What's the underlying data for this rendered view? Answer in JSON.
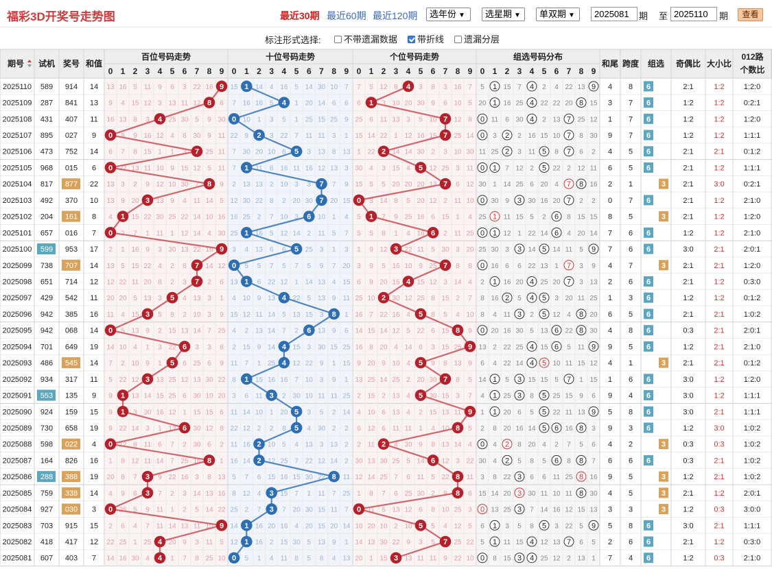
{
  "header": {
    "title": "福彩3D开奖号走势图",
    "period_links": [
      "最近30期",
      "最近60期",
      "最近120期"
    ],
    "selects": [
      "选年份",
      "选星期",
      "单双期"
    ],
    "start_period": "2025081",
    "end_period": "2025110",
    "period_label": "期",
    "to_label": "至",
    "view_button": "查看"
  },
  "options": {
    "label": "标注形式选择:",
    "items": [
      "不带遗漏数据",
      "带折线",
      "遗漏分层"
    ]
  },
  "table": {
    "columns": [
      "期号",
      "试机",
      "奖号",
      "和值",
      "和尾",
      "跨度",
      "组选",
      "奇偶比",
      "大小比",
      "012路个数比"
    ],
    "col_012_lines": [
      "012路",
      "个数比"
    ],
    "sort_icon": "sort-arrows-icon",
    "groups": [
      "百位号码走势",
      "十位号码走势",
      "个位号码走势",
      "组选号码分布"
    ],
    "digits": [
      "0",
      "1",
      "2",
      "3",
      "4",
      "5",
      "6",
      "7",
      "8",
      "9"
    ],
    "group6_label": "6",
    "group3_label": "3",
    "colors": {
      "hundreds_ball": "#b5202a",
      "hundreds_line": "#d4646b",
      "tens_ball": "#2d6fb2",
      "tens_line": "#4f87c3",
      "ones_ball": "#b5202a",
      "group6_badge": "#5ca7bd",
      "group3_badge": "#d9a25a",
      "header_bg": "#eeeeee",
      "zone_a_bg": "#fbf2f2",
      "zone_b_bg": "#f1f4fa"
    },
    "rows": [
      {
        "period": "2025110",
        "test": "589",
        "num": "914",
        "sum": "14",
        "tail": "4",
        "span": "8",
        "group": 6,
        "test_group": null,
        "num_hl": false,
        "oe": "2:1",
        "bs": "1:2",
        "r012": "1:2:0"
      },
      {
        "period": "2025109",
        "test": "287",
        "num": "841",
        "sum": "13",
        "tail": "3",
        "span": "7",
        "group": 6,
        "test_group": null,
        "num_hl": false,
        "oe": "1:2",
        "bs": "1:2",
        "r012": "0:2:1"
      },
      {
        "period": "2025108",
        "test": "431",
        "num": "407",
        "sum": "11",
        "tail": "1",
        "span": "7",
        "group": 6,
        "test_group": null,
        "num_hl": false,
        "oe": "1:2",
        "bs": "1:2",
        "r012": "1:2:0"
      },
      {
        "period": "2025107",
        "test": "895",
        "num": "027",
        "sum": "9",
        "tail": "9",
        "span": "7",
        "group": 6,
        "test_group": null,
        "num_hl": false,
        "oe": "1:2",
        "bs": "1:2",
        "r012": "1:1:1"
      },
      {
        "period": "2025106",
        "test": "473",
        "num": "752",
        "sum": "14",
        "tail": "4",
        "span": "5",
        "group": 6,
        "test_group": null,
        "num_hl": false,
        "oe": "2:1",
        "bs": "2:1",
        "r012": "0:1:2"
      },
      {
        "period": "2025105",
        "test": "968",
        "num": "015",
        "sum": "6",
        "tail": "6",
        "span": "5",
        "group": 6,
        "test_group": null,
        "num_hl": false,
        "oe": "2:1",
        "bs": "1:2",
        "r012": "1:1:1"
      },
      {
        "period": "2025104",
        "test": "817",
        "num": "877",
        "sum": "22",
        "tail": "2",
        "span": "1",
        "group": 3,
        "test_group": null,
        "num_hl": true,
        "oe": "2:1",
        "bs": "3:0",
        "r012": "0:2:1"
      },
      {
        "period": "2025103",
        "test": "492",
        "num": "370",
        "sum": "10",
        "tail": "0",
        "span": "7",
        "group": 6,
        "test_group": null,
        "num_hl": false,
        "oe": "2:1",
        "bs": "1:2",
        "r012": "2:1:0"
      },
      {
        "period": "2025102",
        "test": "204",
        "num": "161",
        "sum": "8",
        "tail": "8",
        "span": "5",
        "group": 3,
        "test_group": null,
        "num_hl": true,
        "oe": "2:1",
        "bs": "1:2",
        "r012": "1:2:0"
      },
      {
        "period": "2025101",
        "test": "657",
        "num": "016",
        "sum": "7",
        "tail": "7",
        "span": "6",
        "group": 6,
        "test_group": null,
        "num_hl": false,
        "oe": "1:2",
        "bs": "1:2",
        "r012": "2:1:0"
      },
      {
        "period": "2025100",
        "test": "599",
        "num": "953",
        "sum": "17",
        "tail": "7",
        "span": "6",
        "group": 6,
        "test_group": 3,
        "num_hl": false,
        "oe": "3:0",
        "bs": "2:1",
        "r012": "2:0:1"
      },
      {
        "period": "2025099",
        "test": "738",
        "num": "707",
        "sum": "14",
        "tail": "4",
        "span": "7",
        "group": 3,
        "test_group": null,
        "num_hl": true,
        "oe": "2:1",
        "bs": "2:1",
        "r012": "1:2:0"
      },
      {
        "period": "2025098",
        "test": "651",
        "num": "714",
        "sum": "12",
        "tail": "2",
        "span": "6",
        "group": 6,
        "test_group": null,
        "num_hl": false,
        "oe": "2:1",
        "bs": "1:2",
        "r012": "0:3:0"
      },
      {
        "period": "2025097",
        "test": "429",
        "num": "542",
        "sum": "11",
        "tail": "1",
        "span": "3",
        "group": 6,
        "test_group": null,
        "num_hl": false,
        "oe": "1:2",
        "bs": "1:2",
        "r012": "0:1:2"
      },
      {
        "period": "2025096",
        "test": "942",
        "num": "385",
        "sum": "16",
        "tail": "6",
        "span": "5",
        "group": 6,
        "test_group": null,
        "num_hl": false,
        "oe": "2:1",
        "bs": "2:1",
        "r012": "1:0:2"
      },
      {
        "period": "2025095",
        "test": "942",
        "num": "068",
        "sum": "14",
        "tail": "4",
        "span": "8",
        "group": 6,
        "test_group": null,
        "num_hl": false,
        "oe": "0:3",
        "bs": "2:1",
        "r012": "2:0:1"
      },
      {
        "period": "2025094",
        "test": "701",
        "num": "649",
        "sum": "19",
        "tail": "9",
        "span": "5",
        "group": 6,
        "test_group": null,
        "num_hl": false,
        "oe": "1:2",
        "bs": "2:1",
        "r012": "2:1:0"
      },
      {
        "period": "2025093",
        "test": "486",
        "num": "545",
        "sum": "14",
        "tail": "4",
        "span": "1",
        "group": 3,
        "test_group": null,
        "num_hl": true,
        "oe": "2:1",
        "bs": "2:1",
        "r012": "0:1:2"
      },
      {
        "period": "2025092",
        "test": "934",
        "num": "317",
        "sum": "11",
        "tail": "1",
        "span": "6",
        "group": 6,
        "test_group": null,
        "num_hl": false,
        "oe": "3:0",
        "bs": "1:2",
        "r012": "1:2:0"
      },
      {
        "period": "2025091",
        "test": "553",
        "num": "135",
        "sum": "9",
        "tail": "9",
        "span": "4",
        "group": 6,
        "test_group": 3,
        "num_hl": false,
        "oe": "3:0",
        "bs": "1:2",
        "r012": "1:1:1"
      },
      {
        "period": "2025090",
        "test": "924",
        "num": "159",
        "sum": "15",
        "tail": "5",
        "span": "8",
        "group": 6,
        "test_group": null,
        "num_hl": false,
        "oe": "3:0",
        "bs": "2:1",
        "r012": "1:1:1"
      },
      {
        "period": "2025089",
        "test": "730",
        "num": "658",
        "sum": "19",
        "tail": "9",
        "span": "3",
        "group": 6,
        "test_group": null,
        "num_hl": false,
        "oe": "1:2",
        "bs": "3:0",
        "r012": "1:0:2"
      },
      {
        "period": "2025088",
        "test": "598",
        "num": "022",
        "sum": "4",
        "tail": "4",
        "span": "2",
        "group": 3,
        "test_group": null,
        "num_hl": true,
        "oe": "0:3",
        "bs": "0:3",
        "r012": "1:0:2"
      },
      {
        "period": "2025087",
        "test": "164",
        "num": "826",
        "sum": "16",
        "tail": "6",
        "span": "6",
        "group": 6,
        "test_group": null,
        "num_hl": false,
        "oe": "0:3",
        "bs": "2:1",
        "r012": "1:0:2"
      },
      {
        "period": "2025086",
        "test": "288",
        "num": "388",
        "sum": "19",
        "tail": "9",
        "span": "5",
        "group": 3,
        "test_group": 3,
        "num_hl": true,
        "oe": "1:2",
        "bs": "2:1",
        "r012": "1:0:2"
      },
      {
        "period": "2025085",
        "test": "759",
        "num": "338",
        "sum": "14",
        "tail": "4",
        "span": "5",
        "group": 3,
        "test_group": null,
        "num_hl": true,
        "oe": "2:1",
        "bs": "1:2",
        "r012": "2:0:1"
      },
      {
        "period": "2025084",
        "test": "927",
        "num": "030",
        "sum": "3",
        "tail": "3",
        "span": "3",
        "group": 3,
        "test_group": null,
        "num_hl": true,
        "oe": "1:2",
        "bs": "0:3",
        "r012": "3:0:0"
      },
      {
        "period": "2025083",
        "test": "703",
        "num": "915",
        "sum": "15",
        "tail": "5",
        "span": "8",
        "group": 6,
        "test_group": null,
        "num_hl": false,
        "oe": "3:0",
        "bs": "2:1",
        "r012": "1:1:1"
      },
      {
        "period": "2025082",
        "test": "418",
        "num": "417",
        "sum": "12",
        "tail": "2",
        "span": "6",
        "group": 6,
        "test_group": null,
        "num_hl": false,
        "oe": "2:1",
        "bs": "1:2",
        "r012": "0:3:0"
      },
      {
        "period": "2025081",
        "test": "607",
        "num": "403",
        "sum": "7",
        "tail": "7",
        "span": "4",
        "group": 6,
        "test_group": null,
        "num_hl": false,
        "oe": "1:2",
        "bs": "0:3",
        "r012": "2:1:0"
      }
    ]
  }
}
